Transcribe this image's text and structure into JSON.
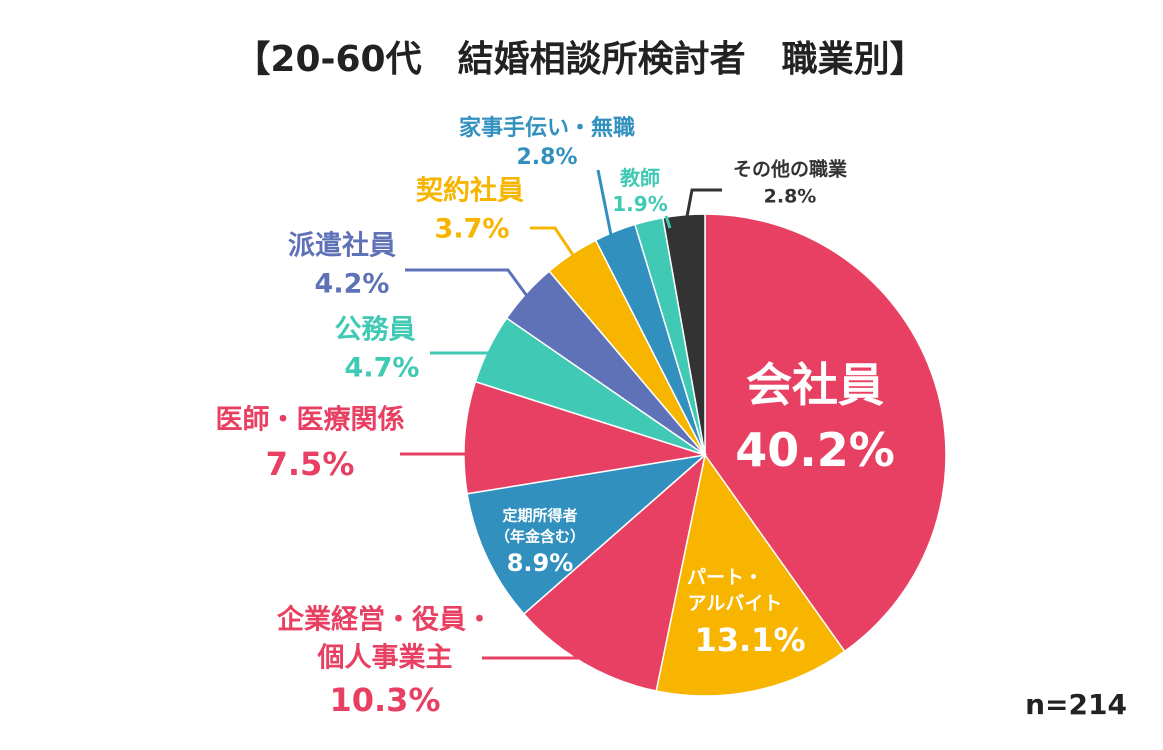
{
  "chart_data": {
    "type": "pie",
    "title": "【20-60代　結婚相談所検討者　職業別】",
    "note": "n=214",
    "start": "top",
    "direction": "clockwise",
    "slices": [
      {
        "label": "会社員",
        "value": 40.2,
        "text": "40.2%",
        "color": "#E84062"
      },
      {
        "label": "パート・アルバイト",
        "label_lines": [
          "パート・",
          "アルバイト"
        ],
        "value": 13.1,
        "text": "13.1%",
        "color": "#F7B500"
      },
      {
        "label": "企業経営・役員・個人事業主",
        "label_lines": [
          "企業経営・役員・",
          "個人事業主"
        ],
        "value": 10.3,
        "text": "10.3%",
        "color": "#E84062"
      },
      {
        "label": "定期所得者（年金含む）",
        "label_lines": [
          "定期所得者",
          "（年金含む）"
        ],
        "value": 8.9,
        "text": "8.9%",
        "color": "#3190BE"
      },
      {
        "label": "医師・医療関係",
        "value": 7.5,
        "text": "7.5%",
        "color": "#E84062"
      },
      {
        "label": "公務員",
        "value": 4.7,
        "text": "4.7%",
        "color": "#40C9B4"
      },
      {
        "label": "派遣社員",
        "value": 4.2,
        "text": "4.2%",
        "color": "#5F71B7"
      },
      {
        "label": "契約社員",
        "value": 3.7,
        "text": "3.7%",
        "color": "#F7B500"
      },
      {
        "label": "家事手伝い・無職",
        "value": 2.8,
        "text": "2.8%",
        "color": "#3190BE"
      },
      {
        "label": "教師",
        "value": 1.9,
        "text": "1.9%",
        "color": "#40C9B4"
      },
      {
        "label": "その他の職業",
        "value": 2.8,
        "text": "2.8%",
        "color": "#333333"
      }
    ]
  }
}
